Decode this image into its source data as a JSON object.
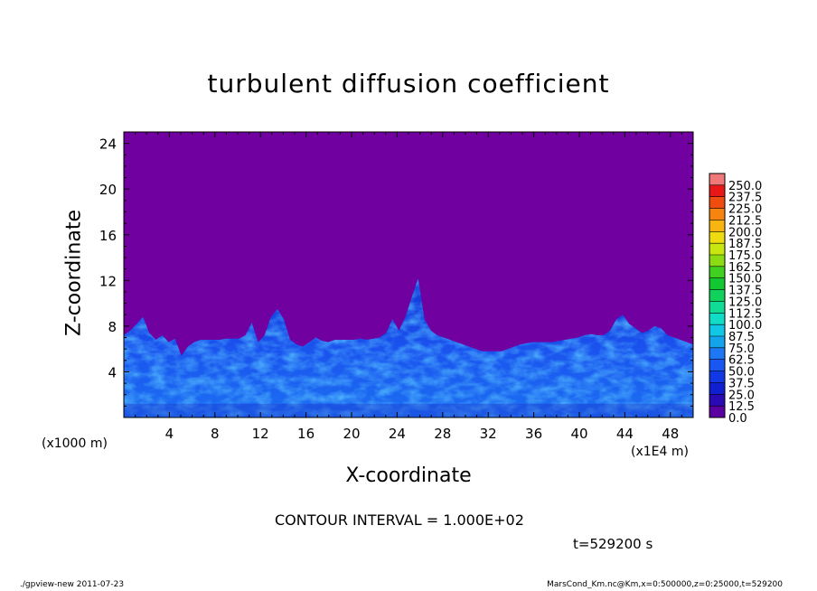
{
  "chart_data": {
    "type": "heatmap",
    "title": "turbulent diffusion coefficient",
    "xlabel": "X-coordinate",
    "ylabel": "Z-coordinate",
    "x_unit_left": "(x1000 m)",
    "x_unit_right": "(x1E4 m)",
    "xlim": [
      0,
      50
    ],
    "ylim": [
      0,
      25
    ],
    "x_ticks": [
      4,
      8,
      12,
      16,
      20,
      24,
      28,
      32,
      36,
      40,
      44,
      48
    ],
    "y_ticks": [
      4,
      8,
      12,
      16,
      20,
      24
    ],
    "colorbar": {
      "levels": [
        "0.0",
        "12.5",
        "25.0",
        "37.5",
        "50.0",
        "62.5",
        "75.0",
        "87.5",
        "100.0",
        "112.5",
        "125.0",
        "137.5",
        "150.0",
        "162.5",
        "175.0",
        "187.5",
        "200.0",
        "212.5",
        "225.0",
        "237.5",
        "250.0"
      ],
      "colors": [
        "#5a00a0",
        "#2a0ab4",
        "#1020d0",
        "#1238e6",
        "#1a56f2",
        "#1e78f6",
        "#14a4ec",
        "#10c8e6",
        "#10dcc8",
        "#10dc96",
        "#10d25a",
        "#12c832",
        "#40d020",
        "#8cdc14",
        "#c8e610",
        "#eedc10",
        "#f8b410",
        "#f88410",
        "#f04c10",
        "#e81818",
        "#f07878"
      ]
    },
    "background_color": "#7000a0",
    "boundary_layer_top_z": [
      7.2,
      7.6,
      8.2,
      8.8,
      7.4,
      6.8,
      7.2,
      6.6,
      6.9,
      5.4,
      6.2,
      6.6,
      6.8,
      6.8,
      6.8,
      6.8,
      6.9,
      6.9,
      6.9,
      7.2,
      8.3,
      6.6,
      7.2,
      8.8,
      9.5,
      8.6,
      6.8,
      6.4,
      6.2,
      6.6,
      7.0,
      6.7,
      6.6,
      6.8,
      6.8,
      6.8,
      6.8,
      6.9,
      6.8,
      6.9,
      7.0,
      7.4,
      8.6,
      7.6,
      8.8,
      10.5,
      12.2,
      8.6,
      7.6,
      7.2,
      7.0,
      6.8,
      6.6,
      6.4,
      6.2,
      6.0,
      5.8,
      5.8,
      5.8,
      5.8,
      6.0,
      6.2,
      6.4,
      6.5,
      6.6,
      6.6,
      6.6,
      6.6,
      6.7,
      6.8,
      6.9,
      7.0,
      7.2,
      7.3,
      7.2,
      7.2,
      7.6,
      8.6,
      9.0,
      8.2,
      7.8,
      7.4,
      7.6,
      8.0,
      7.8,
      7.2,
      7.0,
      6.8,
      6.6,
      6.4
    ],
    "annotation": "CONTOUR INTERVAL = 1.000E+02",
    "time_label": "t=529200 s"
  },
  "footer": {
    "left": "./gpview-new   2011-07-23",
    "right": "MarsCond_Km.nc@Km,x=0:500000,z=0:25000,t=529200"
  }
}
